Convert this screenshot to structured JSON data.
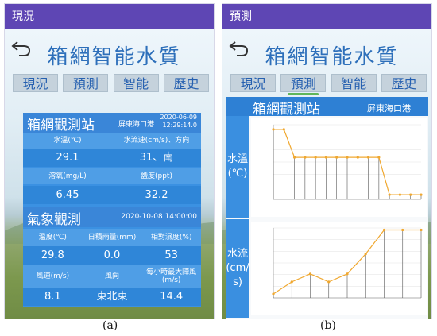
{
  "panel_a": {
    "window_title": "現況",
    "app_title": "箱網智能水質",
    "tabs": [
      {
        "label": "現況",
        "active": true
      },
      {
        "label": "預測",
        "active": false
      },
      {
        "label": "智能",
        "active": false
      },
      {
        "label": "歷史",
        "active": false
      }
    ],
    "station": {
      "title": "箱網觀測站",
      "site": "屏東海口港",
      "date": "2020-06-09",
      "time": "12:29:14.0",
      "labels1": [
        "水溫(℃)",
        "水流速(cm/s)、方向"
      ],
      "values1": [
        "29.1",
        "31、南"
      ],
      "labels2": [
        "溶氧(mg/L)",
        "鹽度(ppt)"
      ],
      "values2": [
        "6.45",
        "32.2"
      ]
    },
    "weather": {
      "title": "氣象觀測",
      "datetime": "2020-10-08 14:00:00",
      "labels1": [
        "溫度(℃)",
        "日積雨量(mm)",
        "相對濕度(%)"
      ],
      "values1": [
        "29.8",
        "0.0",
        "53"
      ],
      "labels2": [
        "風速(m/s)",
        "風向",
        "每小時最大陣風(m/s)"
      ],
      "values2": [
        "8.1",
        "東北東",
        "14.4"
      ]
    },
    "caption": "(a)"
  },
  "panel_b": {
    "window_title": "預測",
    "app_title": "箱網智能水質",
    "tabs": [
      {
        "label": "現況",
        "active": false
      },
      {
        "label": "預測",
        "active": true
      },
      {
        "label": "智能",
        "active": false
      },
      {
        "label": "歷史",
        "active": false
      }
    ],
    "header_title": "箱網觀測站",
    "header_site": "屏東海口港",
    "side_label_1": "水溫\n(℃)",
    "side_label_2": "水流\n(cm/\ns)",
    "caption": "(b)"
  },
  "colors": {
    "titlebar": "#5e46b4",
    "accent_blue": "#2d6fba",
    "card_blue": "#3b91e2",
    "line_orange": "#f0a830",
    "tab_underline": "#5fb65a"
  },
  "chart_data": [
    {
      "type": "line",
      "series": [
        {
          "values": [
            29.3,
            29.3,
            29.0,
            29.0,
            29.0,
            29.0,
            29.0,
            29.0,
            29.0,
            29.0,
            29.0,
            28.6,
            28.6,
            28.6,
            28.6
          ]
        }
      ],
      "ylim": [
        28.55,
        29.35
      ]
    },
    {
      "type": "line",
      "series": [
        {
          "values": [
            28.0,
            28.6,
            29.0,
            28.6,
            29.0,
            30.0,
            31.2,
            31.2,
            31.2
          ]
        }
      ],
      "ylim": [
        27.8,
        31.3
      ]
    }
  ]
}
